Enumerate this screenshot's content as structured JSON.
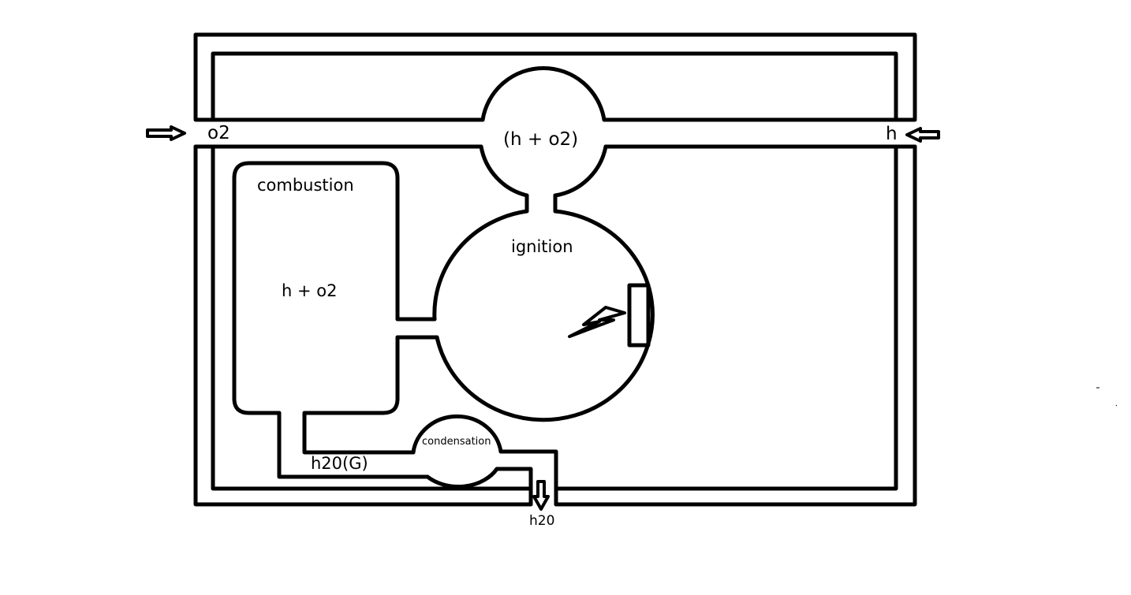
{
  "labels": {
    "o2_inlet": "o2",
    "h_inlet": "h",
    "mixing_chamber": "(h + o2)",
    "combustion_title": "combustion",
    "combustion_contents": "h + o2",
    "ignition": "ignition",
    "condensation": "condensation",
    "steam": "h20(G)",
    "water_outlet": "h20"
  },
  "icons": {
    "inlet_arrow_left": "arrow-right-icon",
    "inlet_arrow_right": "arrow-left-icon",
    "outlet_arrow": "arrow-down-icon",
    "spark": "lightning-bolt-icon"
  },
  "colors": {
    "line": "#000000",
    "background": "#ffffff"
  }
}
